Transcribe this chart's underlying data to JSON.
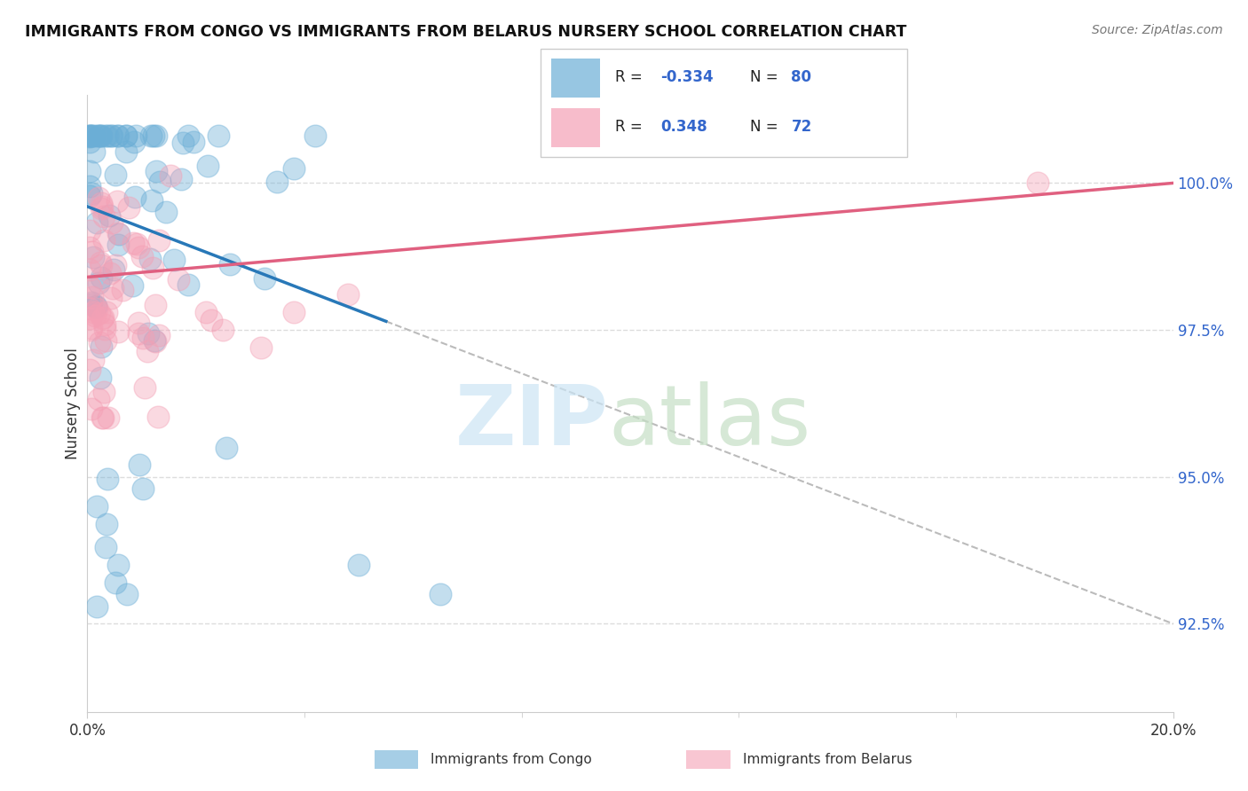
{
  "title": "IMMIGRANTS FROM CONGO VS IMMIGRANTS FROM BELARUS NURSERY SCHOOL CORRELATION CHART",
  "source": "Source: ZipAtlas.com",
  "ylabel": "Nursery School",
  "legend_congo": "Immigrants from Congo",
  "legend_belarus": "Immigrants from Belarus",
  "R_congo": "-0.334",
  "N_congo": "80",
  "R_belarus": "0.348",
  "N_belarus": "72",
  "color_congo": "#6baed6",
  "color_belarus": "#f4a0b5",
  "color_congo_line": "#2878b8",
  "color_belarus_line": "#e06080",
  "xlim": [
    0.0,
    20.0
  ],
  "ylim": [
    91.0,
    101.5
  ],
  "ytick_vals": [
    92.5,
    95.0,
    97.5,
    100.0
  ],
  "ytick_labels": [
    "92.5%",
    "95.0%",
    "97.5%",
    "100.0%"
  ],
  "congo_line_x0": 0.0,
  "congo_line_y0": 99.6,
  "congo_line_x1": 20.0,
  "congo_line_y1": 92.5,
  "belarus_line_x0": 0.0,
  "belarus_line_y0": 98.4,
  "belarus_line_x1": 20.0,
  "belarus_line_y1": 100.0,
  "congo_solid_x_end": 5.5,
  "congo_dashed_x_start": 5.5
}
